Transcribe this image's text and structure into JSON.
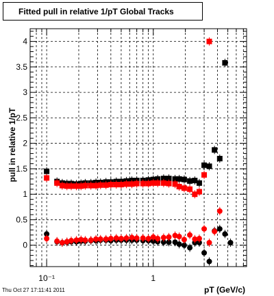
{
  "header": {
    "title": "Fitted pull in relative 1/pT  Global Tracks"
  },
  "footer": {
    "timestamp": "Thu Oct 27 17:11:41 2011"
  },
  "chart_data": {
    "type": "scatter",
    "title": "Fitted pull in relative 1/pT  Global Tracks",
    "xlabel": "pT (GeV/c)",
    "ylabel": "pull in relative 1/pT",
    "x_scale": "log",
    "xlim": [
      0.07,
      7.5
    ],
    "ylim": [
      -0.42,
      4.25
    ],
    "x_major_ticks": [
      {
        "value": 0.1,
        "label": "10⁻¹"
      },
      {
        "value": 1,
        "label": "1"
      }
    ],
    "y_ticks": [
      0,
      0.5,
      1,
      1.5,
      2,
      2.5,
      3,
      3.5,
      4
    ],
    "grid": true,
    "colors": {
      "black_series": "#000000",
      "red_series": "#ff0000"
    },
    "series": [
      {
        "color": "black",
        "marker": "square",
        "x": [
          0.1,
          0.125,
          0.14,
          0.155,
          0.17,
          0.19,
          0.21,
          0.23,
          0.26,
          0.29,
          0.32,
          0.36,
          0.4,
          0.45,
          0.5,
          0.56,
          0.63,
          0.7,
          0.8,
          0.9,
          1.0,
          1.1,
          1.25,
          1.4,
          1.6,
          1.75,
          1.95,
          2.2,
          2.45,
          2.7,
          3.0,
          3.35,
          3.75,
          4.2,
          4.7
        ],
        "y": [
          1.45,
          1.25,
          1.22,
          1.21,
          1.21,
          1.2,
          1.21,
          1.22,
          1.22,
          1.23,
          1.23,
          1.24,
          1.24,
          1.25,
          1.25,
          1.26,
          1.27,
          1.27,
          1.27,
          1.28,
          1.29,
          1.3,
          1.31,
          1.31,
          1.3,
          1.3,
          1.29,
          1.26,
          1.27,
          1.22,
          1.57,
          1.55,
          1.87,
          1.7,
          3.58
        ]
      },
      {
        "color": "red",
        "marker": "square",
        "x": [
          0.1,
          0.125,
          0.14,
          0.155,
          0.17,
          0.19,
          0.21,
          0.23,
          0.26,
          0.29,
          0.32,
          0.36,
          0.4,
          0.45,
          0.5,
          0.56,
          0.63,
          0.7,
          0.8,
          0.9,
          1.0,
          1.1,
          1.25,
          1.4,
          1.6,
          1.75,
          1.95,
          2.2,
          2.45,
          2.7,
          3.0,
          3.35
        ],
        "y": [
          1.32,
          1.22,
          1.17,
          1.16,
          1.16,
          1.16,
          1.16,
          1.17,
          1.17,
          1.17,
          1.18,
          1.18,
          1.19,
          1.19,
          1.19,
          1.2,
          1.2,
          1.21,
          1.21,
          1.21,
          1.22,
          1.22,
          1.22,
          1.21,
          1.2,
          1.15,
          1.12,
          1.1,
          1.0,
          1.05,
          1.38,
          4.0
        ]
      },
      {
        "color": "black",
        "marker": "circle",
        "x": [
          0.1,
          0.125,
          0.14,
          0.155,
          0.17,
          0.19,
          0.21,
          0.23,
          0.26,
          0.29,
          0.32,
          0.36,
          0.4,
          0.45,
          0.5,
          0.56,
          0.63,
          0.7,
          0.8,
          0.9,
          1.0,
          1.1,
          1.25,
          1.4,
          1.6,
          1.75,
          1.95,
          2.2,
          2.45,
          2.7,
          3.0,
          3.35,
          3.75,
          4.2,
          4.7,
          5.3
        ],
        "y": [
          0.22,
          0.07,
          0.05,
          0.06,
          0.07,
          0.07,
          0.08,
          0.08,
          0.09,
          0.09,
          0.1,
          0.1,
          0.09,
          0.1,
          0.1,
          0.1,
          0.1,
          0.1,
          0.09,
          0.09,
          0.08,
          0.07,
          0.06,
          0.06,
          0.06,
          0.02,
          0.0,
          -0.05,
          0.05,
          0.05,
          -0.15,
          -0.32,
          0.28,
          0.32,
          0.22,
          0.05
        ]
      },
      {
        "color": "red",
        "marker": "circle",
        "x": [
          0.1,
          0.125,
          0.14,
          0.155,
          0.17,
          0.19,
          0.21,
          0.23,
          0.26,
          0.29,
          0.32,
          0.36,
          0.4,
          0.45,
          0.5,
          0.56,
          0.63,
          0.7,
          0.8,
          0.9,
          1.0,
          1.1,
          1.25,
          1.4,
          1.6,
          1.75,
          1.95,
          2.2,
          2.45,
          2.7,
          3.0,
          3.35,
          3.75,
          4.2
        ],
        "y": [
          0.13,
          0.08,
          0.05,
          0.07,
          0.09,
          0.1,
          0.11,
          0.1,
          0.1,
          0.12,
          0.12,
          0.12,
          0.13,
          0.14,
          0.13,
          0.14,
          0.15,
          0.14,
          0.14,
          0.13,
          0.16,
          0.13,
          0.15,
          0.16,
          0.19,
          0.17,
          0.11,
          0.2,
          0.12,
          0.13,
          0.32,
          0.05,
          0.27,
          0.67
        ]
      }
    ]
  }
}
